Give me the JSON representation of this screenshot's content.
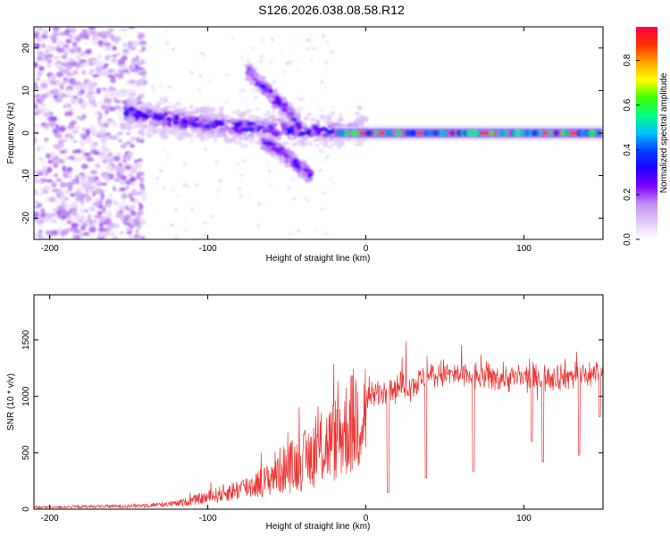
{
  "chart_data": [
    {
      "type": "heatmap",
      "title": "S126.2026.038.08.58.R12",
      "xlabel": "Height of straight line (km)",
      "ylabel": "Frequency (Hz)",
      "xlim": [
        -210,
        150
      ],
      "ylim": [
        -25,
        25
      ],
      "xticks": [
        -200,
        -100,
        0,
        100
      ],
      "yticks": [
        -20,
        -10,
        0,
        10,
        20
      ],
      "colorbar": {
        "label": "Normalized spectral amplitude",
        "range": [
          0,
          0.95
        ],
        "ticks": [
          0.0,
          0.2,
          0.4,
          0.6,
          0.8
        ],
        "colormap": [
          "#ffffff",
          "#e0c8f8",
          "#c090f0",
          "#8000ff",
          "#2000ff",
          "#0040ff",
          "#00c0ff",
          "#00ff80",
          "#40ff00",
          "#ffff00",
          "#ffa000",
          "#ff3000",
          "#ff0050"
        ]
      },
      "features": [
        {
          "name": "diffuse noise",
          "x_range": [
            -210,
            -140
          ],
          "freq_range": [
            -25,
            25
          ],
          "amplitude": 0.1
        },
        {
          "name": "main track",
          "points": [
            [
              -152,
              5
            ],
            [
              -140,
              4
            ],
            [
              -120,
              3
            ],
            [
              -100,
              2
            ],
            [
              -80,
              1.5
            ],
            [
              -60,
              1
            ],
            [
              -40,
              0.5
            ],
            [
              -20,
              0.5
            ],
            [
              0,
              0.5
            ]
          ],
          "amplitude": 0.35
        },
        {
          "name": "upper diagonal track",
          "points": [
            [
              -75,
              15
            ],
            [
              -60,
              9
            ],
            [
              -48,
              5
            ],
            [
              -42,
              2
            ]
          ],
          "amplitude": 0.3
        },
        {
          "name": "lower diagonal track",
          "points": [
            [
              -65,
              -2
            ],
            [
              -55,
              -4
            ],
            [
              -45,
              -7
            ],
            [
              -35,
              -10
            ]
          ],
          "amplitude": 0.3
        },
        {
          "name": "steady carrier",
          "x_range": [
            -20,
            150
          ],
          "frequency": 0,
          "amplitude": 0.9
        }
      ]
    },
    {
      "type": "line",
      "xlabel": "Height of straight line (km)",
      "ylabel": "SNR (10 * v/v)",
      "xlim": [
        -210,
        150
      ],
      "ylim": [
        0,
        1900
      ],
      "xticks": [
        -200,
        -100,
        0,
        100
      ],
      "yticks": [
        0,
        500,
        1000,
        1500
      ],
      "color": "#ee3333",
      "series": [
        {
          "name": "SNR",
          "x": [
            -210,
            -150,
            -120,
            -100,
            -80,
            -60,
            -40,
            -30,
            -20,
            -10,
            0,
            10,
            20,
            30,
            40,
            50,
            60,
            80,
            100,
            120,
            150
          ],
          "values": [
            20,
            35,
            60,
            130,
            220,
            330,
            450,
            560,
            650,
            800,
            950,
            1050,
            1080,
            1110,
            1170,
            1200,
            1180,
            1170,
            1160,
            1180,
            1200
          ]
        }
      ],
      "dips": [
        [
          14,
          150
        ],
        [
          38,
          280
        ],
        [
          68,
          340
        ],
        [
          105,
          600
        ],
        [
          112,
          420
        ],
        [
          135,
          480
        ],
        [
          148,
          820
        ]
      ]
    }
  ]
}
